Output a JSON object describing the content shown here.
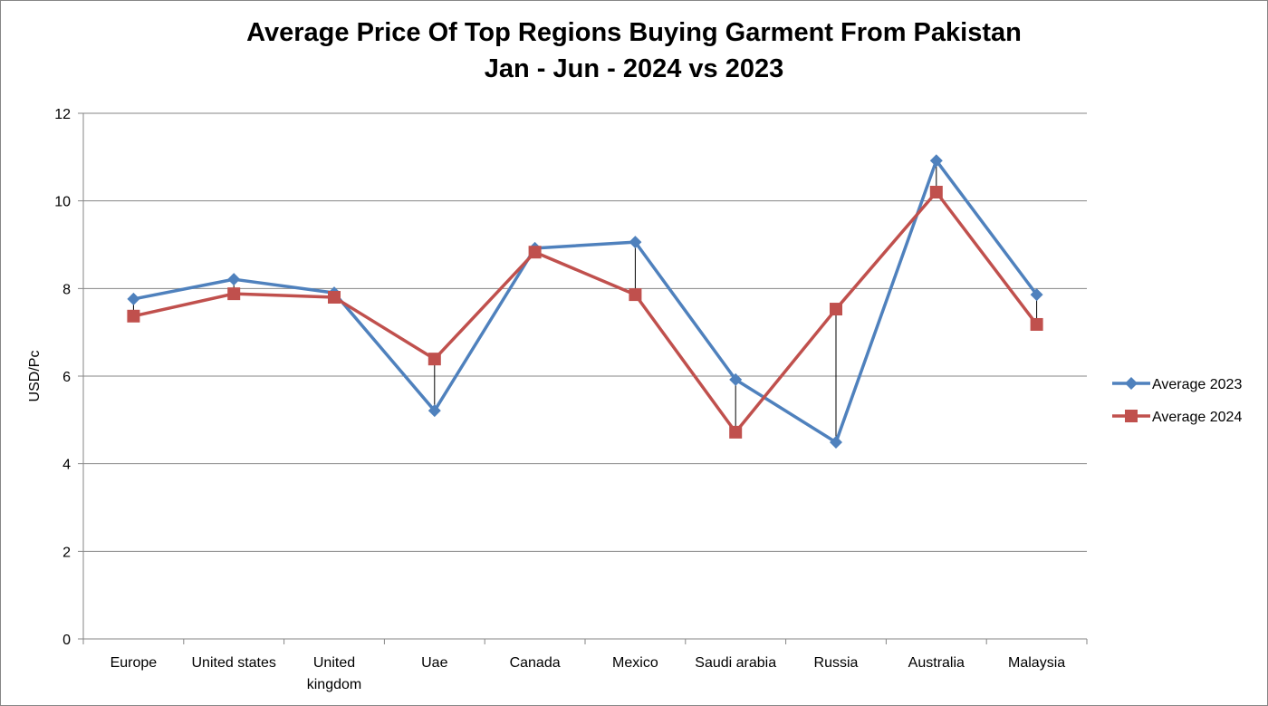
{
  "chart_data": {
    "type": "line",
    "title": "Average Price Of Top Regions Buying Garment From Pakistan",
    "subtitle": "Jan - Jun - 2024 vs 2023",
    "xlabel": "",
    "ylabel": "USD/Pc",
    "ylim": [
      0,
      12
    ],
    "yticks": [
      0,
      2,
      4,
      6,
      8,
      10,
      12
    ],
    "grid": true,
    "legend_placement": "right",
    "categories": [
      [
        "Europe"
      ],
      [
        "United states"
      ],
      [
        "United",
        "kingdom"
      ],
      [
        "Uae"
      ],
      [
        "Canada"
      ],
      [
        "Mexico"
      ],
      [
        "Saudi arabia"
      ],
      [
        "Russia"
      ],
      [
        "Australia"
      ],
      [
        "Malaysia"
      ]
    ],
    "series": [
      {
        "name": "Average 2023",
        "color": "#4F81BD",
        "marker": "diamond",
        "values": [
          7.76,
          8.21,
          7.9,
          5.21,
          8.92,
          9.06,
          5.92,
          4.49,
          10.92,
          7.86
        ]
      },
      {
        "name": "Average 2024",
        "color": "#C0504D",
        "marker": "square",
        "values": [
          7.37,
          7.88,
          7.8,
          6.39,
          8.83,
          7.86,
          4.72,
          7.53,
          10.2,
          7.18
        ]
      }
    ],
    "high_low_lines": true
  }
}
